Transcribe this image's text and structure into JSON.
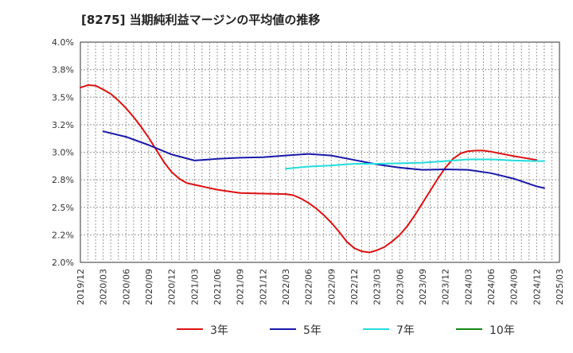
{
  "chart_data": {
    "type": "line",
    "title": "[8275]  当期純利益マージンの平均値の推移",
    "xlabel": "",
    "ylabel": "",
    "ylim": [
      0.02,
      0.04
    ],
    "y_ticks": [
      "2.0%",
      "2.2%",
      "2.5%",
      "2.8%",
      "3.0%",
      "3.2%",
      "3.5%",
      "3.8%",
      "4.0%"
    ],
    "x_ticks": [
      "2019/12",
      "2020/03",
      "2020/06",
      "2020/09",
      "2020/12",
      "2021/03",
      "2021/06",
      "2021/09",
      "2021/12",
      "2022/03",
      "2022/06",
      "2022/09",
      "2022/12",
      "2023/03",
      "2023/06",
      "2023/09",
      "2023/12",
      "2024/03",
      "2024/06",
      "2024/09",
      "2024/12",
      "2025/03"
    ],
    "grid": true,
    "legend_position": "bottom",
    "series": [
      {
        "name": "3年",
        "color": "#dd1111",
        "points": [
          [
            "2019/12",
            0.03587
          ],
          [
            "2020/01",
            0.0361
          ],
          [
            "2020/02",
            0.03605
          ],
          [
            "2020/03",
            0.0357
          ],
          [
            "2020/04",
            0.0353
          ],
          [
            "2020/05",
            0.0347
          ],
          [
            "2020/06",
            0.034
          ],
          [
            "2020/07",
            0.0332
          ],
          [
            "2020/08",
            0.0323
          ],
          [
            "2020/09",
            0.0313
          ],
          [
            "2020/10",
            0.0302
          ],
          [
            "2020/11",
            0.0291
          ],
          [
            "2020/12",
            0.0282
          ],
          [
            "2021/01",
            0.0276
          ],
          [
            "2021/02",
            0.0272
          ],
          [
            "2021/03",
            0.02705
          ],
          [
            "2021/06",
            0.0266
          ],
          [
            "2021/09",
            0.0263
          ],
          [
            "2021/12",
            0.02625
          ],
          [
            "2022/03",
            0.0262
          ],
          [
            "2022/04",
            0.0261
          ],
          [
            "2022/05",
            0.0258
          ],
          [
            "2022/06",
            0.0254
          ],
          [
            "2022/07",
            0.0249
          ],
          [
            "2022/08",
            0.0243
          ],
          [
            "2022/09",
            0.0236
          ],
          [
            "2022/10",
            0.0228
          ],
          [
            "2022/11",
            0.0219
          ],
          [
            "2022/12",
            0.0213
          ],
          [
            "2023/01",
            0.021
          ],
          [
            "2023/02",
            0.0209
          ],
          [
            "2023/03",
            0.0211
          ],
          [
            "2023/04",
            0.0214
          ],
          [
            "2023/05",
            0.0219
          ],
          [
            "2023/06",
            0.0225
          ],
          [
            "2023/07",
            0.0233
          ],
          [
            "2023/08",
            0.0243
          ],
          [
            "2023/09",
            0.0254
          ],
          [
            "2023/10",
            0.0265
          ],
          [
            "2023/11",
            0.0276
          ],
          [
            "2023/12",
            0.0286
          ],
          [
            "2024/01",
            0.0294
          ],
          [
            "2024/02",
            0.0299
          ],
          [
            "2024/03",
            0.0301
          ],
          [
            "2024/04",
            0.03015
          ],
          [
            "2024/05",
            0.03015
          ],
          [
            "2024/06",
            0.03005
          ],
          [
            "2024/09",
            0.02965
          ],
          [
            "2024/12",
            0.0293
          ]
        ]
      },
      {
        "name": "5年",
        "color": "#1818aa",
        "points": [
          [
            "2020/03",
            0.0319
          ],
          [
            "2020/06",
            0.0314
          ],
          [
            "2020/09",
            0.03065
          ],
          [
            "2020/12",
            0.0298
          ],
          [
            "2021/03",
            0.02925
          ],
          [
            "2021/06",
            0.0294
          ],
          [
            "2021/09",
            0.0295
          ],
          [
            "2021/12",
            0.02955
          ],
          [
            "2022/03",
            0.0297
          ],
          [
            "2022/06",
            0.02985
          ],
          [
            "2022/09",
            0.0297
          ],
          [
            "2022/12",
            0.0293
          ],
          [
            "2023/03",
            0.0289
          ],
          [
            "2023/06",
            0.0286
          ],
          [
            "2023/09",
            0.0284
          ],
          [
            "2023/12",
            0.02845
          ],
          [
            "2024/03",
            0.0284
          ],
          [
            "2024/06",
            0.0281
          ],
          [
            "2024/09",
            0.0276
          ],
          [
            "2024/12",
            0.0269
          ],
          [
            "2025/01",
            0.02675
          ]
        ]
      },
      {
        "name": "7年",
        "color": "#22dddd",
        "points": [
          [
            "2022/03",
            0.0285
          ],
          [
            "2022/06",
            0.0287
          ],
          [
            "2022/09",
            0.0288
          ],
          [
            "2022/12",
            0.02895
          ],
          [
            "2023/03",
            0.02895
          ],
          [
            "2023/06",
            0.029
          ],
          [
            "2023/09",
            0.02905
          ],
          [
            "2023/12",
            0.0292
          ],
          [
            "2024/03",
            0.02935
          ],
          [
            "2024/06",
            0.02935
          ],
          [
            "2024/09",
            0.02925
          ],
          [
            "2024/12",
            0.0292
          ],
          [
            "2025/01",
            0.0292
          ]
        ]
      },
      {
        "name": "10年",
        "color": "#118811",
        "points": []
      }
    ]
  }
}
